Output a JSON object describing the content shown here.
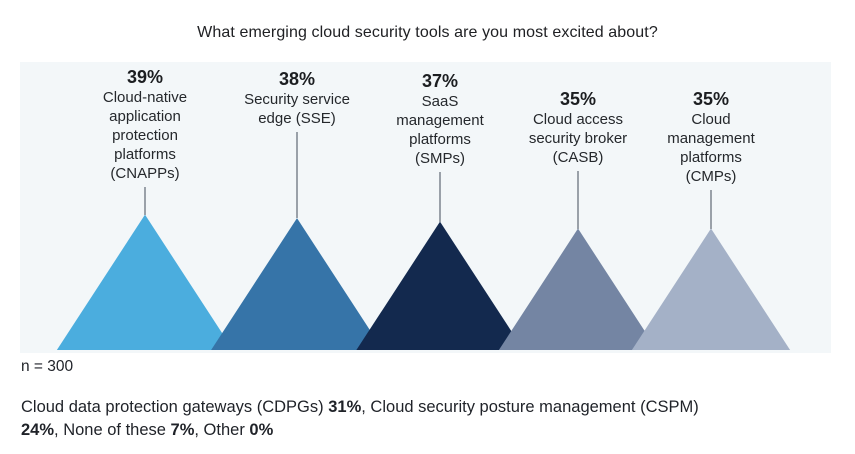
{
  "chart_data": {
    "type": "bar",
    "variant": "triangle-peak-pictogram",
    "title": "What emerging cloud security tools are you most excited about?",
    "categories": [
      "Cloud-native application protection platforms (CNAPPs)",
      "Security service edge (SSE)",
      "SaaS management platforms (SMPs)",
      "Cloud access security broker (CASB)",
      "Cloud management platforms (CMPs)"
    ],
    "label_lines": [
      [
        "Cloud-native",
        "application",
        "protection",
        "platforms",
        "(CNAPPs)"
      ],
      [
        "Security service",
        "edge (SSE)"
      ],
      [
        "SaaS",
        "management",
        "platforms",
        "(SMPs)"
      ],
      [
        "Cloud access",
        "security broker",
        "(CASB)"
      ],
      [
        "Cloud",
        "management",
        "platforms",
        "(CMPs)"
      ]
    ],
    "values": [
      39,
      38,
      37,
      35,
      35
    ],
    "value_labels": [
      "39%",
      "38%",
      "37%",
      "35%",
      "35%"
    ],
    "colors": [
      "#4badde",
      "#3674a8",
      "#13294e",
      "#7485a3",
      "#a4b1c7"
    ],
    "panel_background": "#f3f7f9",
    "sample_note": "n = 300",
    "additional_mentions": [
      {
        "label": "Cloud data protection gateways (CDPGs)",
        "value": "31%"
      },
      {
        "label": "Cloud security posture management (CSPM)",
        "value": "24%"
      },
      {
        "label": "None of these",
        "value": "7%"
      },
      {
        "label": "Other",
        "value": "0%"
      }
    ]
  },
  "footnote": {
    "segments": [
      {
        "t": "Cloud data protection gateways (CDPGs) "
      },
      {
        "t": "31%",
        "b": true
      },
      {
        "t": ", Cloud security posture management (CSPM) "
      },
      {
        "br": true
      },
      {
        "t": "24%",
        "b": true
      },
      {
        "t": ", None of these "
      },
      {
        "t": "7%",
        "b": true
      },
      {
        "t": ", Other "
      },
      {
        "t": "0%",
        "b": true
      }
    ]
  }
}
